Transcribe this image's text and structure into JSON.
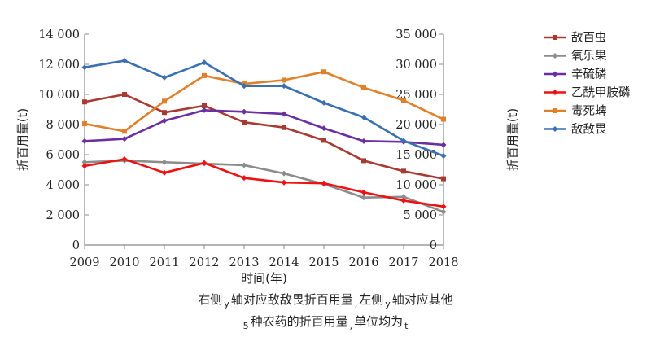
{
  "chart_data": {
    "type": "line",
    "categories": [
      "2009",
      "2010",
      "2011",
      "2012",
      "2013",
      "2014",
      "2015",
      "2016",
      "2017",
      "2018"
    ],
    "xlabel": "时间(年)",
    "ylabel_left": "折百用量(t)",
    "ylabel_right": "折百用量(t)",
    "ylim_left": [
      0,
      14000
    ],
    "ylim_right": [
      0,
      35000
    ],
    "yticks_left": [
      "0",
      "2 000",
      "4 000",
      "6 000",
      "8 000",
      "10 000",
      "12 000",
      "14 000"
    ],
    "yticks_right": [
      "0",
      "5 000",
      "10 000",
      "15 000",
      "20 000",
      "25 000",
      "30 000",
      "35 000"
    ],
    "legend_position": "right",
    "grid": false,
    "series": [
      {
        "name": "敌百虫",
        "color": "#a83a32",
        "marker": "square",
        "axis": "left",
        "values": [
          9500,
          10000,
          8800,
          9250,
          8150,
          7800,
          6950,
          5600,
          4900,
          4400
        ]
      },
      {
        "name": "氧乐果",
        "color": "#8c8c8c",
        "marker": "diamond",
        "axis": "left",
        "values": [
          5500,
          5600,
          5500,
          5400,
          5300,
          4750,
          4050,
          3150,
          3200,
          2200
        ]
      },
      {
        "name": "辛硫磷",
        "color": "#6a2fa0",
        "marker": "diamond",
        "axis": "left",
        "values": [
          6900,
          7050,
          8250,
          8950,
          8850,
          8700,
          7750,
          6900,
          6850,
          6650
        ]
      },
      {
        "name": "乙酰甲胺磷",
        "color": "#ee1111",
        "marker": "diamond",
        "axis": "left",
        "values": [
          5250,
          5700,
          4800,
          5450,
          4450,
          4150,
          4100,
          3500,
          2950,
          2550
        ]
      },
      {
        "name": "毒死蜱",
        "color": "#e0802a",
        "marker": "square",
        "axis": "left",
        "values": [
          8050,
          7550,
          9550,
          11250,
          10700,
          10950,
          11500,
          10450,
          9600,
          8350
        ]
      },
      {
        "name": "敌敌畏",
        "color": "#3a6fb0",
        "marker": "diamond",
        "axis": "right",
        "values": [
          29500,
          30600,
          27800,
          30300,
          26400,
          26400,
          23600,
          21200,
          17300,
          14800
        ]
      }
    ]
  },
  "caption": {
    "line1_a": "右侧",
    "line1_y1": "y",
    "line1_b": "轴对应敌敌畏折百用量",
    "line1_comma": ",",
    "line1_c": "左侧",
    "line1_y2": "y",
    "line1_d": "轴对应其他",
    "line2_a": "5",
    "line2_b": "种农药的折百用量",
    "line2_comma": ",",
    "line2_c": "单位均为",
    "line2_t": "t"
  }
}
